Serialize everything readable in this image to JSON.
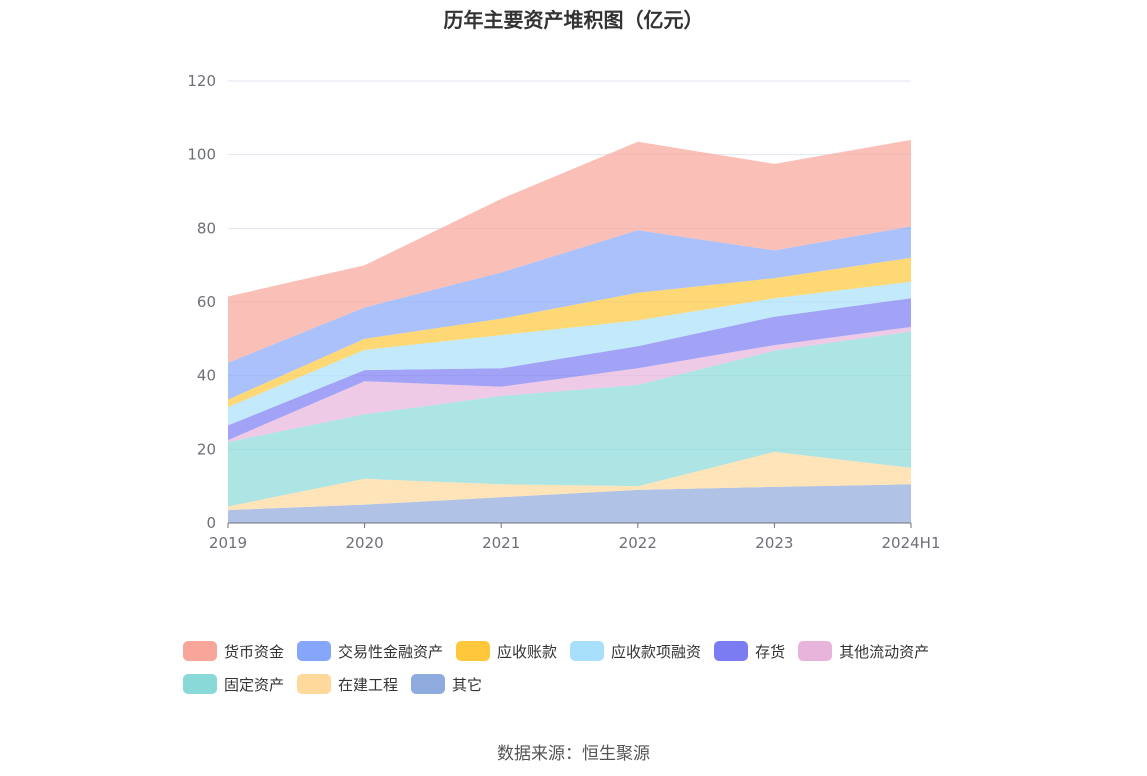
{
  "chart_data": {
    "type": "area",
    "stacked": true,
    "title": "历年主要资产堆积图（亿元）",
    "source": "数据来源：恒生聚源",
    "xlabel": "",
    "ylabel": "",
    "ylim": [
      0,
      120
    ],
    "yticks": [
      "0",
      "20",
      "40",
      "60",
      "80",
      "100",
      "120"
    ],
    "grid": true,
    "legend_position": "bottom",
    "x": [
      "2019",
      "2020",
      "2021",
      "2022",
      "2023",
      "2024H1"
    ],
    "series": [
      {
        "name": "其它",
        "color": "#8faadc",
        "values": [
          3.5,
          5.0,
          7.0,
          9.0,
          9.8,
          10.5
        ]
      },
      {
        "name": "在建工程",
        "color": "#ffd99b",
        "values": [
          1.0,
          7.0,
          3.5,
          1.0,
          9.5,
          4.5
        ]
      },
      {
        "name": "固定资产",
        "color": "#8ad9d9",
        "values": [
          17.5,
          17.5,
          24.0,
          27.5,
          27.5,
          37.0
        ]
      },
      {
        "name": "其他流动资产",
        "color": "#e8b4dc",
        "values": [
          0.5,
          9.0,
          2.5,
          4.5,
          1.5,
          1.2
        ]
      },
      {
        "name": "存货",
        "color": "#7b7cf2",
        "values": [
          4.0,
          3.0,
          5.0,
          6.0,
          7.7,
          7.8
        ]
      },
      {
        "name": "应收款项融资",
        "color": "#a8e0fb",
        "values": [
          5.0,
          5.5,
          9.0,
          7.0,
          5.0,
          4.5
        ]
      },
      {
        "name": "应收账款",
        "color": "#ffc83c",
        "values": [
          2.0,
          3.0,
          4.5,
          7.5,
          5.5,
          6.5
        ]
      },
      {
        "name": "交易性金融资产",
        "color": "#86a6fb",
        "values": [
          10.0,
          8.5,
          12.5,
          17.0,
          7.5,
          8.5
        ]
      },
      {
        "name": "货币资金",
        "color": "#f8a59a",
        "values": [
          18.0,
          11.5,
          20.0,
          24.0,
          23.5,
          23.5
        ]
      }
    ],
    "legend_rows": [
      [
        "货币资金",
        "交易性金融资产",
        "应收账款",
        "应收款项融资",
        "存货",
        "其他流动资产"
      ],
      [
        "固定资产",
        "在建工程",
        "其它"
      ]
    ]
  }
}
